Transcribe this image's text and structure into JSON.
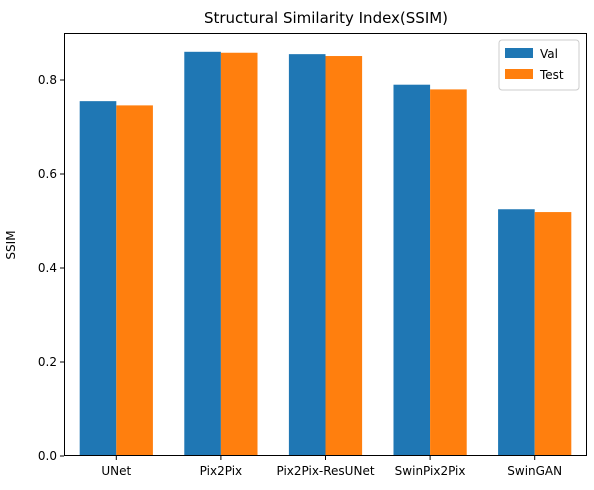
{
  "chart_data": {
    "type": "bar",
    "title": "Structural Similarity Index(SSIM)",
    "xlabel": "",
    "ylabel": "SSIM",
    "categories": [
      "UNet",
      "Pix2Pix",
      "Pix2Pix-ResUNet",
      "SwinPix2Pix",
      "SwinGAN"
    ],
    "series": [
      {
        "name": "Val",
        "color": "#1f77b4",
        "values": [
          0.755,
          0.86,
          0.855,
          0.79,
          0.525
        ]
      },
      {
        "name": "Test",
        "color": "#ff7f0e",
        "values": [
          0.746,
          0.858,
          0.851,
          0.78,
          0.519
        ]
      }
    ],
    "ylim": [
      0,
      0.9
    ],
    "yticks": [
      0.0,
      0.2,
      0.4,
      0.6,
      0.8
    ],
    "ytick_labels": [
      "0.0",
      "0.2",
      "0.4",
      "0.6",
      "0.8"
    ],
    "grid": false,
    "legend_position": "top-right"
  }
}
